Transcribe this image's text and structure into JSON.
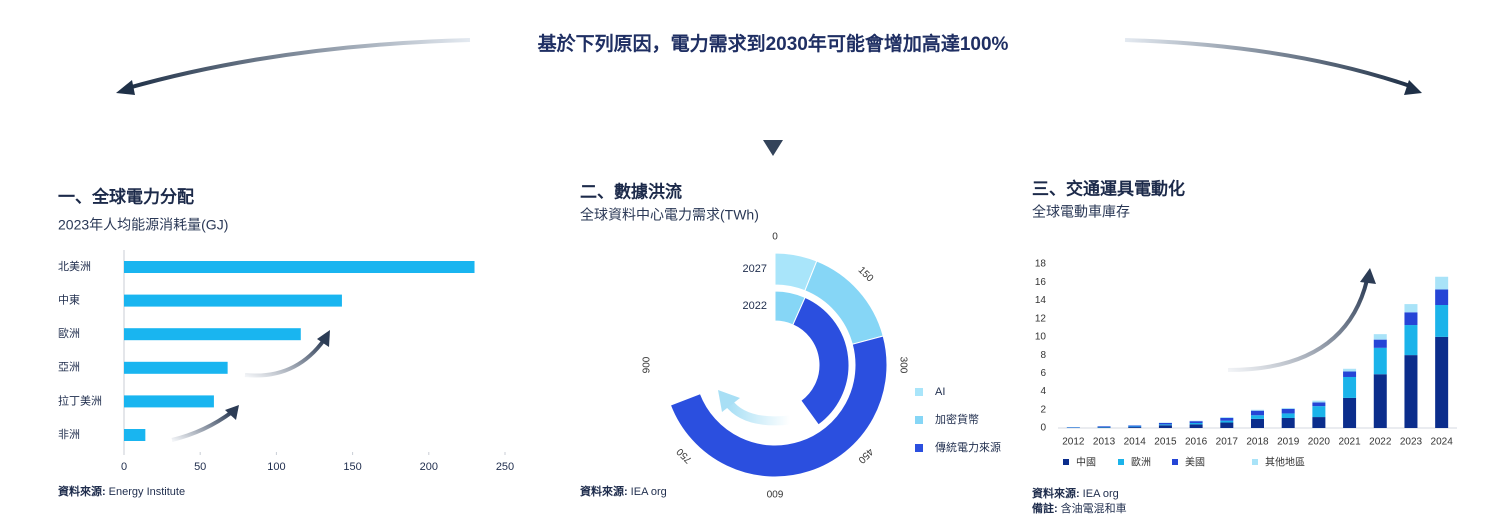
{
  "header": {
    "title": "基於下列原因，電力需求到2030年可能會增加高達100%"
  },
  "chart_data": [
    {
      "type": "hbar",
      "title": "一、全球電力分配",
      "subtitle": "2023年人均能源消耗量(GJ)",
      "source_label": "資料來源:",
      "source": "Energy Institute",
      "categories": [
        "北美洲",
        "中東",
        "歐洲",
        "亞洲",
        "拉丁美洲",
        "非洲"
      ],
      "values": [
        230,
        143,
        116,
        68,
        59,
        14
      ],
      "color": "#19b5f0",
      "xlim": [
        0,
        250
      ],
      "xticks": [
        0,
        50,
        100,
        150,
        200,
        250
      ]
    },
    {
      "type": "radial_bar",
      "title": "二、數據洪流",
      "subtitle": "全球資料中心電力需求(TWh)",
      "source_label": "資料來源:",
      "source": "IEA org",
      "categories": [
        "2022",
        "2027"
      ],
      "series": [
        {
          "name": "AI",
          "color": "#a9e5fa",
          "values": [
            0,
            73
          ]
        },
        {
          "name": "加密貨幣",
          "color": "#86d6f6",
          "values": [
            80,
            177
          ]
        },
        {
          "name": "傳統電力來源",
          "color": "#2b4fdf",
          "values": [
            400,
            580
          ]
        }
      ],
      "thetalim": [
        0,
        1200
      ],
      "thetaticks": [
        0,
        150,
        300,
        450,
        600,
        750,
        900
      ]
    },
    {
      "type": "stacked_bar",
      "title": "三、交通運具電動化",
      "subtitle": "全球電動車庫存",
      "source_label": "資料來源:",
      "source": "IEA org",
      "note_label": "備註:",
      "note": "含油電混和車",
      "categories": [
        "2012",
        "2013",
        "2014",
        "2015",
        "2016",
        "2017",
        "2018",
        "2019",
        "2020",
        "2021",
        "2022",
        "2023",
        "2024"
      ],
      "series": [
        {
          "name": "中國",
          "color": "#0b2d8c",
          "values": [
            0.02,
            0.05,
            0.1,
            0.3,
            0.4,
            0.6,
            1.0,
            1.1,
            1.2,
            3.3,
            5.9,
            8.0,
            10.0
          ]
        },
        {
          "name": "歐洲",
          "color": "#1bb3ea",
          "values": [
            0.03,
            0.05,
            0.07,
            0.1,
            0.15,
            0.2,
            0.4,
            0.5,
            1.2,
            2.3,
            2.9,
            3.3,
            3.5
          ]
        },
        {
          "name": "美國",
          "color": "#2545d6",
          "values": [
            0.04,
            0.08,
            0.1,
            0.15,
            0.2,
            0.3,
            0.5,
            0.5,
            0.4,
            0.6,
            0.9,
            1.4,
            1.7
          ]
        },
        {
          "name": "其他地區",
          "color": "#a9e3f8",
          "values": [
            0.01,
            0.02,
            0.03,
            0.05,
            0.05,
            0.1,
            0.1,
            0.1,
            0.2,
            0.3,
            0.6,
            0.9,
            1.4
          ]
        }
      ],
      "ylim": [
        0,
        18
      ],
      "yticks": [
        0,
        2,
        4,
        6,
        8,
        10,
        12,
        14,
        16,
        18
      ]
    }
  ]
}
